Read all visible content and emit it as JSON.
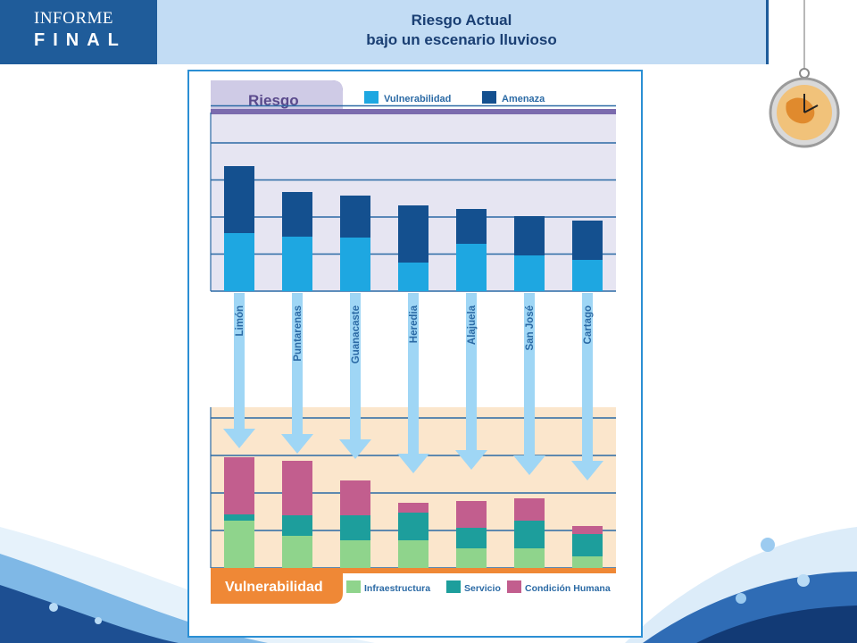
{
  "header": {
    "logo_line1": "INFORME",
    "logo_line2": "FINAL",
    "title_line1": "Riesgo Actual",
    "title_line2": "bajo un escenario lluvioso"
  },
  "colors": {
    "header_bg": "#c2dcf4",
    "logo_bg": "#1f5c9a",
    "title_color": "#1a3f73",
    "vulnerabilidad": "#1ea7e1",
    "amenaza": "#14508f",
    "infraestructura": "#8fd48c",
    "servicio": "#1d9e9c",
    "condicion_humana": "#c25e8e",
    "risk_header": "#7b6bae",
    "vuln_header": "#ef8836"
  },
  "chart_data": [
    {
      "type": "bar",
      "stacked": true,
      "title": "Riesgo",
      "categories": [
        "Limón",
        "Puntarenas",
        "Guanacaste",
        "Heredia",
        "Alajuela",
        "San José",
        "Cartago"
      ],
      "series": [
        {
          "name": "Vulnerabilidad",
          "color": "#1ea7e1",
          "values": [
            65,
            61,
            60,
            32,
            53,
            40,
            35
          ]
        },
        {
          "name": "Amenaza",
          "color": "#14508f",
          "values": [
            75,
            50,
            47,
            64,
            39,
            44,
            44
          ]
        }
      ],
      "ylim": [
        0,
        200
      ],
      "grid": true,
      "legend": "top"
    },
    {
      "type": "bar",
      "stacked": true,
      "title": "Vulnerabilidad",
      "categories": [
        "Limón",
        "Puntarenas",
        "Guanacaste",
        "Heredia",
        "Alajuela",
        "San José",
        "Cartago"
      ],
      "series": [
        {
          "name": "Infraestructura",
          "color": "#8fd48c",
          "values": [
            53,
            36,
            31,
            31,
            22,
            22,
            13
          ]
        },
        {
          "name": "Servicio",
          "color": "#1d9e9c",
          "values": [
            7,
            23,
            28,
            31,
            23,
            31,
            25
          ]
        },
        {
          "name": "Condición Humana",
          "color": "#c25e8e",
          "values": [
            64,
            61,
            39,
            11,
            30,
            25,
            9
          ]
        }
      ],
      "ylim": [
        0,
        180
      ],
      "grid": true,
      "legend": "bottom"
    }
  ]
}
